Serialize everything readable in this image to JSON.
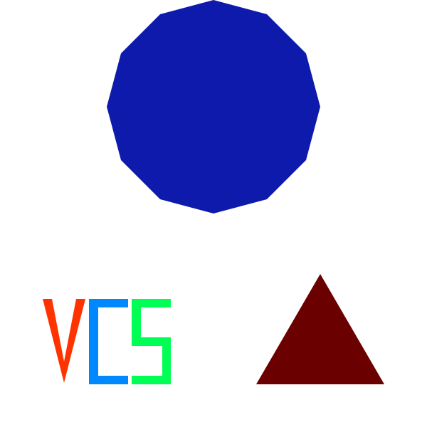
{
  "shapes": {
    "polygon": {
      "kind": "dodecagon",
      "color": "#0e1aab"
    },
    "triangle": {
      "kind": "triangle",
      "color": "#6b0000"
    }
  },
  "letters": [
    {
      "char": "V",
      "color": "#ff3300"
    },
    {
      "char": "C",
      "color": "#0088ff"
    },
    {
      "char": "S",
      "color": "#00ff55"
    }
  ]
}
